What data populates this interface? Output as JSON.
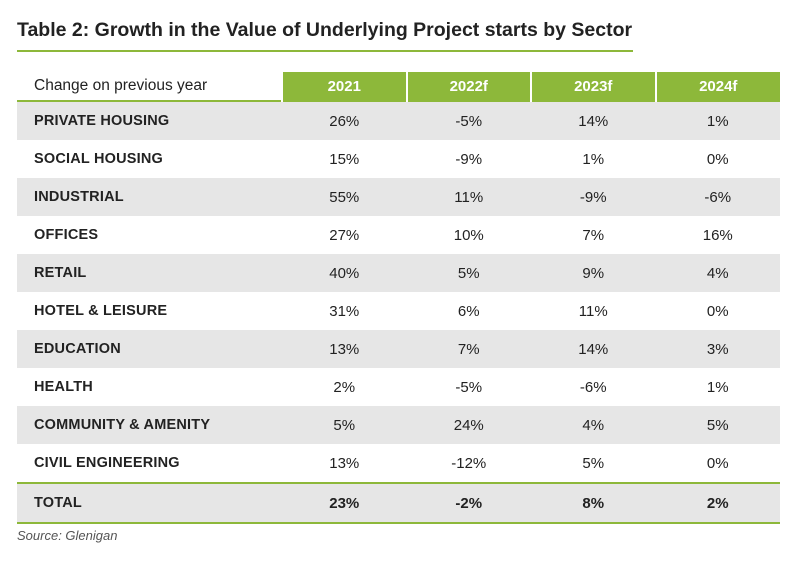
{
  "title": "Table 2: Growth in the Value of Underlying Project starts by Sector",
  "colors": {
    "accent": "#8db83a",
    "shaded_row": "#e6e6e6"
  },
  "table": {
    "row_header": "Change on previous year",
    "columns": [
      "2021",
      "2022f",
      "2023f",
      "2024f"
    ],
    "rows": [
      {
        "label": "PRIVATE HOUSING",
        "values": [
          "26%",
          "-5%",
          "14%",
          "1%"
        ]
      },
      {
        "label": "SOCIAL HOUSING",
        "values": [
          "15%",
          "-9%",
          "1%",
          "0%"
        ]
      },
      {
        "label": "INDUSTRIAL",
        "values": [
          "55%",
          "11%",
          "-9%",
          "-6%"
        ]
      },
      {
        "label": "OFFICES",
        "values": [
          "27%",
          "10%",
          "7%",
          "16%"
        ]
      },
      {
        "label": "RETAIL",
        "values": [
          "40%",
          "5%",
          "9%",
          "4%"
        ]
      },
      {
        "label": "HOTEL & LEISURE",
        "values": [
          "31%",
          "6%",
          "11%",
          "0%"
        ]
      },
      {
        "label": "EDUCATION",
        "values": [
          "13%",
          "7%",
          "14%",
          "3%"
        ]
      },
      {
        "label": "HEALTH",
        "values": [
          "2%",
          "-5%",
          "-6%",
          "1%"
        ]
      },
      {
        "label": "COMMUNITY & AMENITY",
        "values": [
          "5%",
          "24%",
          "4%",
          "5%"
        ]
      },
      {
        "label": "CIVIL ENGINEERING",
        "values": [
          "13%",
          "-12%",
          "5%",
          "0%"
        ]
      }
    ],
    "total": {
      "label": "TOTAL",
      "values": [
        "23%",
        "-2%",
        "8%",
        "2%"
      ]
    }
  },
  "source": "Source: Glenigan"
}
